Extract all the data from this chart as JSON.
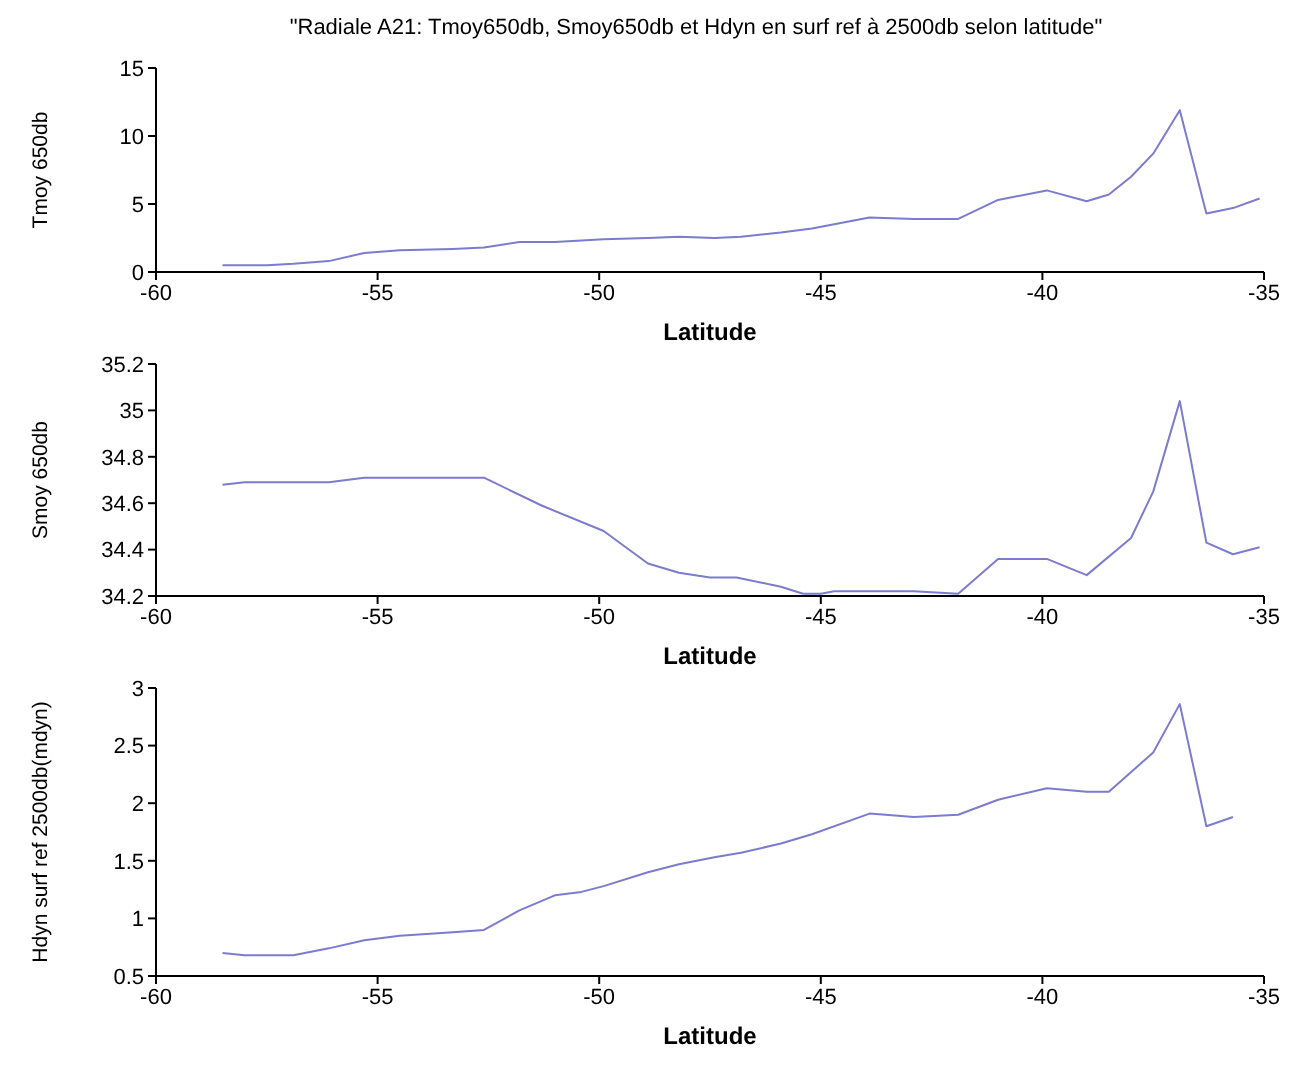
{
  "chart_data": [
    {
      "type": "line",
      "title": "\"Radiale A21: Tmoy650db, Smoy650db et Hdyn en surf ref à 2500db selon latitude\"",
      "xlabel": "Latitude",
      "ylabel": "Tmoy 650db",
      "xlim": [
        -60,
        -35
      ],
      "xticks": [
        -60,
        -55,
        -50,
        -45,
        -40,
        -35
      ],
      "ylim": [
        0,
        15
      ],
      "yticks": [
        0,
        5,
        10,
        15
      ],
      "grid": false,
      "legend": false,
      "series": [
        {
          "color": "#7b7bd0",
          "x": [
            -58.5,
            -57.5,
            -56.9,
            -56.1,
            -55.3,
            -54.5,
            -53.3,
            -52.6,
            -51.8,
            -51.0,
            -49.9,
            -48.9,
            -48.2,
            -47.4,
            -46.8,
            -45.9,
            -45.2,
            -43.9,
            -42.9,
            -41.9,
            -41.0,
            -39.9,
            -39.0,
            -38.5,
            -38.0,
            -37.5,
            -36.9,
            -36.3,
            -35.7,
            -35.1
          ],
          "values": [
            0.5,
            0.5,
            0.6,
            0.8,
            1.4,
            1.6,
            1.7,
            1.8,
            2.2,
            2.2,
            2.4,
            2.5,
            2.6,
            2.5,
            2.6,
            2.9,
            3.2,
            4.0,
            3.9,
            3.9,
            5.3,
            6.0,
            5.2,
            5.7,
            7.0,
            8.7,
            11.9,
            4.3,
            4.7,
            5.4
          ]
        }
      ]
    },
    {
      "type": "line",
      "xlabel": "Latitude",
      "ylabel": "Smoy 650db",
      "xlim": [
        -60,
        -35
      ],
      "xticks": [
        -60,
        -55,
        -50,
        -45,
        -40,
        -35
      ],
      "ylim": [
        34.2,
        35.2
      ],
      "yticks": [
        34.2,
        34.4,
        34.6,
        34.8,
        35,
        35.2
      ],
      "grid": false,
      "legend": false,
      "series": [
        {
          "color": "#7b7bd0",
          "x": [
            -58.5,
            -58.0,
            -56.1,
            -55.3,
            -54.5,
            -53.6,
            -52.6,
            -51.3,
            -49.9,
            -48.9,
            -48.2,
            -47.5,
            -46.9,
            -45.9,
            -45.4,
            -45.0,
            -44.7,
            -43.9,
            -42.9,
            -41.9,
            -41.0,
            -39.9,
            -39.0,
            -38.0,
            -37.5,
            -36.9,
            -36.3,
            -35.7,
            -35.1
          ],
          "values": [
            34.68,
            34.69,
            34.69,
            34.71,
            34.71,
            34.71,
            34.71,
            34.59,
            34.48,
            34.34,
            34.3,
            34.28,
            34.28,
            34.24,
            34.21,
            34.21,
            34.22,
            34.22,
            34.22,
            34.21,
            34.36,
            34.36,
            34.29,
            34.45,
            34.65,
            35.04,
            34.43,
            34.38,
            34.41
          ]
        }
      ]
    },
    {
      "type": "line",
      "xlabel": "Latitude",
      "ylabel": "Hdyn surf ref 2500db(mdyn)",
      "xlim": [
        -60,
        -35
      ],
      "xticks": [
        -60,
        -55,
        -50,
        -45,
        -40,
        -35
      ],
      "ylim": [
        0.5,
        3
      ],
      "yticks": [
        0.5,
        1,
        1.5,
        2,
        2.5,
        3
      ],
      "grid": false,
      "legend": false,
      "series": [
        {
          "color": "#7b7bd0",
          "x": [
            -58.5,
            -58.0,
            -56.9,
            -56.1,
            -55.3,
            -54.5,
            -53.3,
            -52.6,
            -51.8,
            -51.0,
            -50.4,
            -49.9,
            -48.9,
            -48.2,
            -47.4,
            -46.8,
            -45.9,
            -45.2,
            -43.9,
            -42.9,
            -41.9,
            -41.0,
            -39.9,
            -39.0,
            -38.5,
            -37.5,
            -36.9,
            -36.3,
            -35.7
          ],
          "values": [
            0.7,
            0.68,
            0.68,
            0.74,
            0.81,
            0.85,
            0.88,
            0.9,
            1.07,
            1.2,
            1.23,
            1.28,
            1.4,
            1.47,
            1.53,
            1.57,
            1.65,
            1.73,
            1.91,
            1.88,
            1.9,
            2.03,
            2.13,
            2.1,
            2.1,
            2.44,
            2.86,
            1.8,
            1.88
          ]
        }
      ]
    }
  ]
}
